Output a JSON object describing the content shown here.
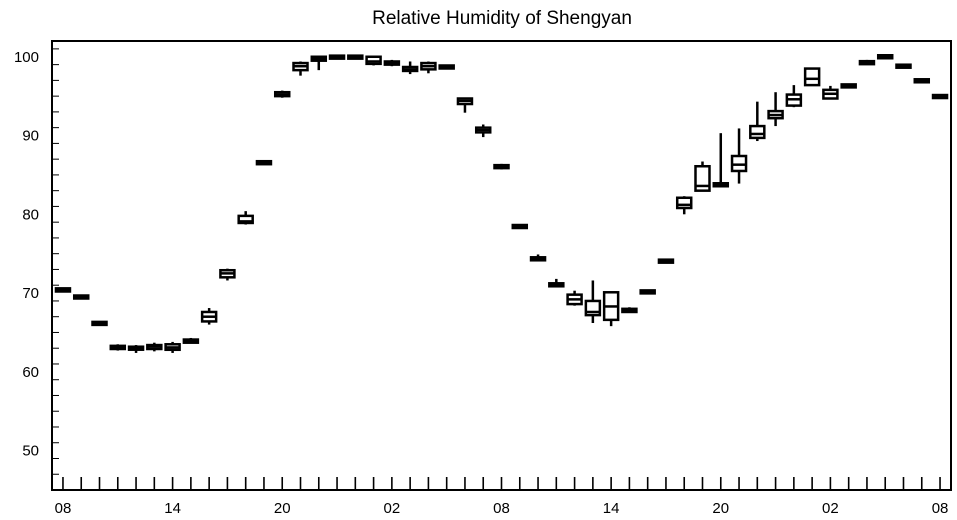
{
  "chart_data": {
    "type": "box",
    "title": "Relative Humidity of Shengyan",
    "xlabel": "",
    "ylabel": "",
    "ylim": [
      45,
      102
    ],
    "y_ticks": [
      50,
      60,
      70,
      80,
      90,
      100
    ],
    "x_tick_labels": [
      "08",
      "14",
      "20",
      "02",
      "08",
      "14",
      "20",
      "02",
      "08"
    ],
    "x_tick_hours": [
      0,
      6,
      12,
      18,
      24,
      30,
      36,
      42,
      48
    ],
    "x_range": [
      -0.6,
      48.6
    ],
    "grid": false,
    "legend": "none",
    "boxes": [
      {
        "hour": 0,
        "min": 70.1,
        "q1": 70.2,
        "median": 70.4,
        "q3": 70.6,
        "max": 70.7
      },
      {
        "hour": 1,
        "min": 69.3,
        "q1": 69.4,
        "median": 69.5,
        "q3": 69.6,
        "max": 69.7
      },
      {
        "hour": 2,
        "min": 65.9,
        "q1": 66.0,
        "median": 66.2,
        "q3": 66.3,
        "max": 66.4
      },
      {
        "hour": 3,
        "min": 62.7,
        "q1": 62.9,
        "median": 63.1,
        "q3": 63.3,
        "max": 63.5
      },
      {
        "hour": 4,
        "min": 62.4,
        "q1": 62.9,
        "median": 63.0,
        "q3": 63.1,
        "max": 63.4
      },
      {
        "hour": 5,
        "min": 62.6,
        "q1": 62.9,
        "median": 63.2,
        "q3": 63.4,
        "max": 63.7
      },
      {
        "hour": 6,
        "min": 62.4,
        "q1": 62.8,
        "median": 63.1,
        "q3": 63.5,
        "max": 63.8
      },
      {
        "hour": 7,
        "min": 63.6,
        "q1": 63.7,
        "median": 63.9,
        "q3": 64.1,
        "max": 64.3
      },
      {
        "hour": 8,
        "min": 66.0,
        "q1": 66.4,
        "median": 67.0,
        "q3": 67.6,
        "max": 68.1
      },
      {
        "hour": 9,
        "min": 71.6,
        "q1": 72.0,
        "median": 72.5,
        "q3": 72.9,
        "max": 73.1
      },
      {
        "hour": 10,
        "min": 78.7,
        "q1": 78.9,
        "median": 79.1,
        "q3": 79.8,
        "max": 80.4
      },
      {
        "hour": 11,
        "min": 86.3,
        "q1": 86.4,
        "median": 86.5,
        "q3": 86.7,
        "max": 86.8
      },
      {
        "hour": 12,
        "min": 94.8,
        "q1": 95.0,
        "median": 95.2,
        "q3": 95.5,
        "max": 95.7
      },
      {
        "hour": 13,
        "min": 97.6,
        "q1": 98.3,
        "median": 98.8,
        "q3": 99.2,
        "max": 99.4
      },
      {
        "hour": 14,
        "min": 98.3,
        "q1": 99.5,
        "median": 99.8,
        "q3": 100.0,
        "max": 100.0
      },
      {
        "hour": 15,
        "min": 99.9,
        "q1": 99.9,
        "median": 100.0,
        "q3": 100.0,
        "max": 100.0
      },
      {
        "hour": 16,
        "min": 99.9,
        "q1": 99.9,
        "median": 100.0,
        "q3": 100.0,
        "max": 100.0
      },
      {
        "hour": 17,
        "min": 98.9,
        "q1": 99.1,
        "median": 99.4,
        "q3": 100.0,
        "max": 100.0
      },
      {
        "hour": 18,
        "min": 98.8,
        "q1": 99.0,
        "median": 99.2,
        "q3": 99.4,
        "max": 99.6
      },
      {
        "hour": 19,
        "min": 97.8,
        "q1": 98.2,
        "median": 98.4,
        "q3": 98.7,
        "max": 99.4
      },
      {
        "hour": 20,
        "min": 97.9,
        "q1": 98.4,
        "median": 98.8,
        "q3": 99.2,
        "max": 99.4
      },
      {
        "hour": 21,
        "min": 98.4,
        "q1": 98.6,
        "median": 98.7,
        "q3": 98.8,
        "max": 98.9
      },
      {
        "hour": 22,
        "min": 92.9,
        "q1": 94.0,
        "median": 94.4,
        "q3": 94.7,
        "max": 94.8
      },
      {
        "hour": 23,
        "min": 89.8,
        "q1": 90.4,
        "median": 90.7,
        "q3": 91.0,
        "max": 91.4
      },
      {
        "hour": 24,
        "min": 85.7,
        "q1": 85.9,
        "median": 86.0,
        "q3": 86.2,
        "max": 86.4
      },
      {
        "hour": 25,
        "min": 78.2,
        "q1": 78.3,
        "median": 78.4,
        "q3": 78.6,
        "max": 78.7
      },
      {
        "hour": 26,
        "min": 74.1,
        "q1": 74.2,
        "median": 74.3,
        "q3": 74.5,
        "max": 74.9
      },
      {
        "hour": 27,
        "min": 70.8,
        "q1": 70.9,
        "median": 71.0,
        "q3": 71.2,
        "max": 71.8
      },
      {
        "hour": 28,
        "min": 68.4,
        "q1": 68.6,
        "median": 69.2,
        "q3": 69.8,
        "max": 70.3
      },
      {
        "hour": 29,
        "min": 66.2,
        "q1": 67.2,
        "median": 67.6,
        "q3": 69.0,
        "max": 71.6
      },
      {
        "hour": 30,
        "min": 65.8,
        "q1": 66.6,
        "median": 68.3,
        "q3": 70.1,
        "max": 70.1
      },
      {
        "hour": 31,
        "min": 67.5,
        "q1": 67.6,
        "median": 67.8,
        "q3": 68.0,
        "max": 68.2
      },
      {
        "hour": 32,
        "min": 70.0,
        "q1": 70.1,
        "median": 70.1,
        "q3": 70.2,
        "max": 70.2
      },
      {
        "hour": 33,
        "min": 73.9,
        "q1": 74.0,
        "median": 74.0,
        "q3": 74.1,
        "max": 74.2
      },
      {
        "hour": 34,
        "min": 80.0,
        "q1": 80.8,
        "median": 81.2,
        "q3": 82.1,
        "max": 82.3
      },
      {
        "hour": 35,
        "min": 82.9,
        "q1": 83.0,
        "median": 83.6,
        "q3": 86.1,
        "max": 86.7
      },
      {
        "hour": 36,
        "min": 83.6,
        "q1": 83.6,
        "median": 83.7,
        "q3": 83.9,
        "max": 90.3
      },
      {
        "hour": 37,
        "min": 83.9,
        "q1": 85.5,
        "median": 86.3,
        "q3": 87.4,
        "max": 90.9
      },
      {
        "hour": 38,
        "min": 89.3,
        "q1": 89.7,
        "median": 90.2,
        "q3": 91.2,
        "max": 94.3
      },
      {
        "hour": 39,
        "min": 91.2,
        "q1": 92.2,
        "median": 92.6,
        "q3": 93.1,
        "max": 95.5
      },
      {
        "hour": 40,
        "min": 93.6,
        "q1": 93.8,
        "median": 94.6,
        "q3": 95.2,
        "max": 96.4
      },
      {
        "hour": 41,
        "min": 96.4,
        "q1": 96.4,
        "median": 97.2,
        "q3": 98.5,
        "max": 98.5
      },
      {
        "hour": 42,
        "min": 94.6,
        "q1": 94.7,
        "median": 95.3,
        "q3": 95.8,
        "max": 96.3
      },
      {
        "hour": 43,
        "min": 96.1,
        "q1": 96.2,
        "median": 96.3,
        "q3": 96.4,
        "max": 96.5
      },
      {
        "hour": 44,
        "min": 99.0,
        "q1": 99.1,
        "median": 99.3,
        "q3": 99.4,
        "max": 99.6
      },
      {
        "hour": 45,
        "min": 100.0,
        "q1": 100.0,
        "median": 100.0,
        "q3": 100.0,
        "max": 100.0
      },
      {
        "hour": 46,
        "min": 98.7,
        "q1": 98.7,
        "median": 98.8,
        "q3": 98.9,
        "max": 99.0
      },
      {
        "hour": 47,
        "min": 96.8,
        "q1": 96.9,
        "median": 96.9,
        "q3": 97.0,
        "max": 97.0
      },
      {
        "hour": 48,
        "min": 94.8,
        "q1": 94.9,
        "median": 94.9,
        "q3": 95.0,
        "max": 95.1
      }
    ]
  }
}
